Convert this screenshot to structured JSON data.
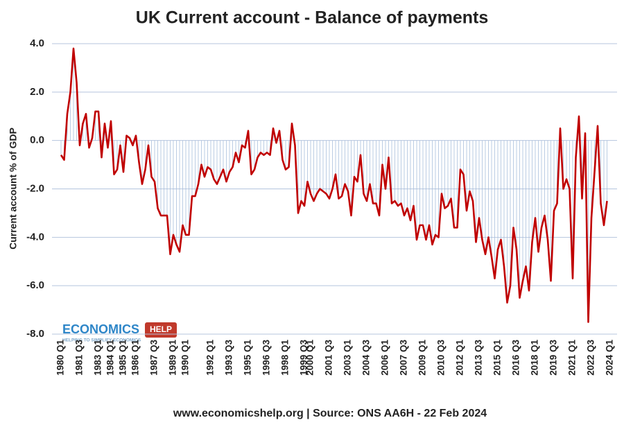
{
  "chart_data": {
    "type": "line",
    "title": "UK Current account - Balance of payments",
    "y_label": "Current account % of GDP",
    "footer": "www.economicshelp.org | Source: ONS AA6H - 22 Feb 2024",
    "logo": {
      "left": "ECONOMICS",
      "right": "HELP",
      "tagline": "HELPING TO SIMPLIFY ECONOMICS"
    },
    "categories": [
      "1980 Q1",
      null,
      null,
      null,
      null,
      null,
      "1981 Q3",
      null,
      null,
      null,
      null,
      null,
      "1983 Q1",
      null,
      null,
      null,
      "1984 Q1",
      null,
      null,
      null,
      "1985 Q1",
      null,
      null,
      null,
      "1986 Q1",
      null,
      null,
      null,
      null,
      null,
      "1987 Q3",
      null,
      null,
      null,
      null,
      null,
      "1989 Q1",
      null,
      null,
      null,
      "1990 Q1",
      null,
      null,
      null,
      null,
      null,
      null,
      null,
      "1992 Q1",
      null,
      null,
      null,
      null,
      null,
      "1993 Q3",
      null,
      null,
      null,
      null,
      null,
      "1995 Q1",
      null,
      null,
      null,
      null,
      null,
      "1996 Q3",
      null,
      null,
      null,
      null,
      null,
      "1998 Q1",
      null,
      null,
      null,
      null,
      null,
      "1999 Q3",
      null,
      "2000 Q1",
      null,
      null,
      null,
      null,
      null,
      "2001 Q3",
      null,
      null,
      null,
      null,
      null,
      "2003 Q1",
      null,
      null,
      null,
      null,
      null,
      "2004 Q3",
      null,
      null,
      null,
      null,
      null,
      "2006 Q1",
      null,
      null,
      null,
      null,
      null,
      "2007 Q3",
      null,
      null,
      null,
      null,
      null,
      "2009 Q1",
      null,
      null,
      null,
      null,
      null,
      "2010 Q3",
      null,
      null,
      null,
      null,
      null,
      "2012 Q1",
      null,
      null,
      null,
      null,
      null,
      "2013 Q3",
      null,
      null,
      null,
      null,
      null,
      "2015 Q1",
      null,
      null,
      null,
      null,
      null,
      "2016 Q3",
      null,
      null,
      null,
      null,
      null,
      "2018 Q1",
      null,
      null,
      null,
      null,
      null,
      "2019 Q3",
      null,
      null,
      null,
      null,
      null,
      "2021 Q1",
      null,
      null,
      null,
      null,
      null,
      "2022 Q3",
      null,
      null,
      null,
      null,
      null,
      "2024 Q1"
    ],
    "series": [
      {
        "name": "Current account % of GDP",
        "color": "#c00000",
        "drop_line_color": "#a9bfdc",
        "values": [
          -0.6,
          -0.8,
          1.1,
          2.0,
          3.8,
          2.4,
          -0.2,
          0.7,
          1.1,
          -0.3,
          0.1,
          1.2,
          1.2,
          -0.7,
          0.7,
          -0.3,
          0.8,
          -1.4,
          -1.2,
          -0.2,
          -1.3,
          0.2,
          0.1,
          -0.2,
          0.2,
          -0.9,
          -1.8,
          -1.2,
          -0.2,
          -1.5,
          -1.7,
          -2.8,
          -3.1,
          -3.1,
          -3.1,
          -4.7,
          -3.9,
          -4.3,
          -4.6,
          -3.5,
          -3.9,
          -3.9,
          -2.3,
          -2.3,
          -1.8,
          -1.0,
          -1.5,
          -1.1,
          -1.2,
          -1.6,
          -1.8,
          -1.5,
          -1.2,
          -1.7,
          -1.3,
          -1.1,
          -0.5,
          -0.9,
          -0.2,
          -0.3,
          0.4,
          -1.4,
          -1.2,
          -0.7,
          -0.5,
          -0.6,
          -0.5,
          -0.6,
          0.5,
          -0.1,
          0.4,
          -0.8,
          -1.2,
          -1.1,
          0.7,
          -0.2,
          -3.0,
          -2.5,
          -2.7,
          -1.7,
          -2.2,
          -2.5,
          -2.2,
          -2.0,
          -2.1,
          -2.2,
          -2.4,
          -2.0,
          -1.4,
          -2.4,
          -2.3,
          -1.8,
          -2.1,
          -3.1,
          -1.5,
          -1.7,
          -0.6,
          -2.2,
          -2.5,
          -1.8,
          -2.6,
          -2.6,
          -3.1,
          -1.0,
          -2.0,
          -0.7,
          -2.6,
          -2.5,
          -2.7,
          -2.6,
          -3.1,
          -2.8,
          -3.3,
          -2.7,
          -4.1,
          -3.5,
          -3.5,
          -4.1,
          -3.5,
          -4.3,
          -3.9,
          -4.0,
          -2.2,
          -2.8,
          -2.7,
          -2.4,
          -3.6,
          -3.6,
          -1.2,
          -1.4,
          -2.9,
          -2.1,
          -2.5,
          -4.2,
          -3.2,
          -4.1,
          -4.7,
          -4.0,
          -4.8,
          -5.7,
          -4.5,
          -4.1,
          -5.2,
          -6.7,
          -6.0,
          -3.6,
          -4.5,
          -6.5,
          -5.8,
          -5.2,
          -6.2,
          -4.2,
          -3.2,
          -4.6,
          -3.6,
          -3.1,
          -4.1,
          -5.8,
          -2.9,
          -2.6,
          0.5,
          -2.0,
          -1.6,
          -2.0,
          -5.7,
          -0.7,
          1.0,
          -2.4,
          0.3,
          -7.5,
          -3.2,
          -1.3,
          0.6,
          -2.6,
          -3.5,
          -2.5,
          null
        ]
      }
    ],
    "ylim": [
      -8,
      4
    ],
    "yticks": [
      {
        "value": 4,
        "label": "4.0"
      },
      {
        "value": 2,
        "label": "2.0"
      },
      {
        "value": 0,
        "label": "0.0"
      },
      {
        "value": -2,
        "label": "-2.0"
      },
      {
        "value": -4,
        "label": "-4.0"
      },
      {
        "value": -6,
        "label": "-6.0"
      },
      {
        "value": -8,
        "label": "-8.0"
      }
    ],
    "grid": true,
    "grid_color": "#b4c4de"
  }
}
